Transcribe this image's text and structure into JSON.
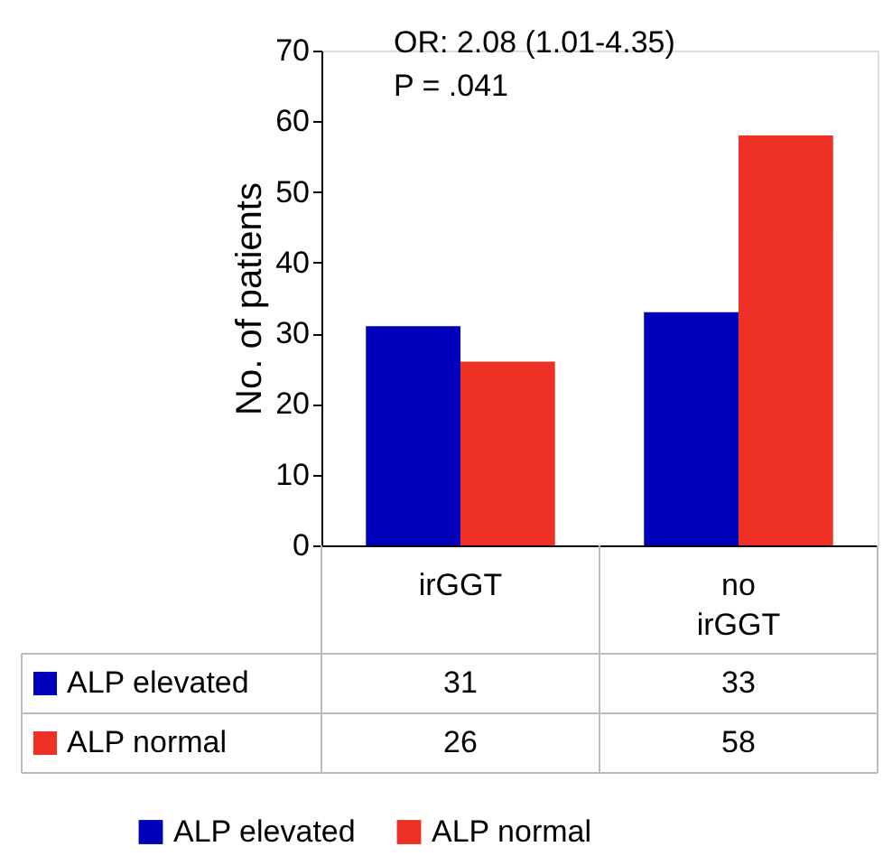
{
  "chart_data": {
    "type": "bar",
    "ylabel": "No. of patients",
    "categories": [
      "irGGT",
      "no irGGT"
    ],
    "series": [
      {
        "name": "ALP elevated",
        "color": "#0000bb",
        "values": [
          31,
          33
        ]
      },
      {
        "name": "ALP normal",
        "color": "#ee3124",
        "values": [
          26,
          58
        ]
      }
    ],
    "ylim": [
      0,
      70
    ],
    "yticks": [
      0,
      10,
      20,
      30,
      40,
      50,
      60,
      70
    ],
    "grid": false,
    "legend": "bottom",
    "data_labels": true,
    "annotations": [
      "OR: 2.08 (1.01-4.35)",
      "P = .041"
    ]
  }
}
